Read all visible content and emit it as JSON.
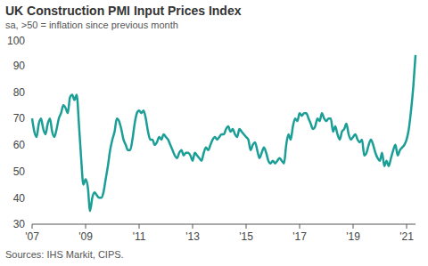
{
  "chart_data": {
    "type": "line",
    "title": "UK Construction PMI Input Prices Index",
    "subtitle": "sa, >50 = inflation since previous month",
    "source": "Sources: IHS Markit, CIPS.",
    "categories": [
      "'07",
      null,
      null,
      null,
      null,
      null,
      null,
      null,
      null,
      null,
      null,
      null,
      null,
      null,
      null,
      null,
      null,
      null,
      null,
      null,
      null,
      null,
      null,
      null,
      "'09",
      null,
      null,
      null,
      null,
      null,
      null,
      null,
      null,
      null,
      null,
      null,
      null,
      null,
      null,
      null,
      null,
      null,
      null,
      null,
      null,
      null,
      null,
      null,
      "'11",
      null,
      null,
      null,
      null,
      null,
      null,
      null,
      null,
      null,
      null,
      null,
      null,
      null,
      null,
      null,
      null,
      null,
      null,
      null,
      null,
      null,
      null,
      null,
      "'13",
      null,
      null,
      null,
      null,
      null,
      null,
      null,
      null,
      null,
      null,
      null,
      null,
      null,
      null,
      null,
      null,
      null,
      null,
      null,
      null,
      null,
      null,
      null,
      "'15",
      null,
      null,
      null,
      null,
      null,
      null,
      null,
      null,
      null,
      null,
      null,
      null,
      null,
      null,
      null,
      null,
      null,
      null,
      null,
      null,
      null,
      null,
      null,
      "'17",
      null,
      null,
      null,
      null,
      null,
      null,
      null,
      null,
      null,
      null,
      null,
      null,
      null,
      null,
      null,
      null,
      null,
      null,
      null,
      null,
      null,
      null,
      null,
      "'19",
      null,
      null,
      null,
      null,
      null,
      null,
      null,
      null,
      null,
      null,
      null,
      null,
      null,
      null,
      null,
      null,
      null,
      null,
      null,
      null,
      null,
      null,
      null,
      "'21",
      null,
      null,
      null,
      null
    ],
    "values": [
      70,
      65,
      63,
      68,
      70,
      66,
      64,
      68,
      70,
      65,
      63,
      66,
      70,
      72,
      75,
      74,
      72,
      78,
      79,
      77,
      79,
      68,
      55,
      45,
      47,
      44,
      35,
      40,
      42,
      41,
      40,
      40,
      42,
      47,
      52,
      58,
      62,
      65,
      70,
      69,
      66,
      62,
      60,
      58,
      58,
      62,
      68,
      72,
      73,
      72,
      73,
      70,
      65,
      62,
      62,
      60,
      61,
      63,
      62,
      64,
      63,
      62,
      60,
      58,
      56,
      55,
      57,
      58,
      56,
      57,
      57,
      56,
      54,
      57,
      56,
      55,
      54,
      57,
      59,
      58,
      60,
      62,
      63,
      62,
      63,
      64,
      64,
      66,
      67,
      65,
      66,
      64,
      63,
      66,
      65,
      64,
      63,
      62,
      58,
      60,
      61,
      58,
      55,
      57,
      59,
      57,
      54,
      53,
      54,
      53,
      54,
      55,
      54,
      53,
      60,
      64,
      62,
      67,
      70,
      69,
      72,
      71,
      72,
      72,
      70,
      68,
      66,
      67,
      70,
      69,
      72,
      70,
      69,
      70,
      70,
      65,
      67,
      64,
      62,
      65,
      66,
      68,
      64,
      62,
      63,
      64,
      62,
      61,
      62,
      56,
      57,
      60,
      62,
      60,
      57,
      55,
      54,
      57,
      52,
      54,
      52,
      55,
      58,
      60,
      56,
      58,
      59,
      60,
      62,
      66,
      73,
      82,
      94
    ],
    "color": "#1a9e96",
    "ylim": [
      30,
      100
    ],
    "yticks": [
      30,
      40,
      50,
      60,
      70,
      80,
      90,
      100
    ],
    "grid": false
  }
}
